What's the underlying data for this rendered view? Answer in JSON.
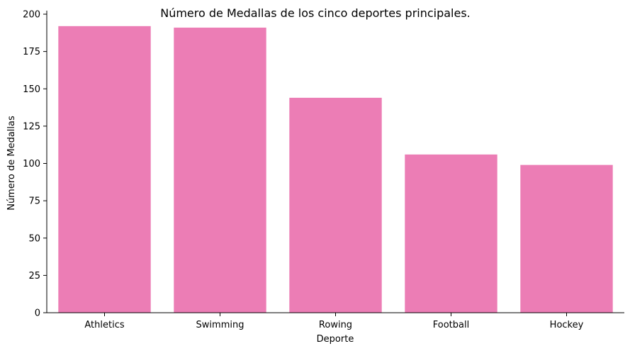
{
  "chart_data": {
    "type": "bar",
    "title": "Número de Medallas de los cinco deportes principales.",
    "xlabel": "Deporte",
    "ylabel": "Número de Medallas",
    "categories": [
      "Athletics",
      "Swimming",
      "Rowing",
      "Football",
      "Hockey"
    ],
    "values": [
      192,
      191,
      144,
      106,
      99
    ],
    "ylim": [
      0,
      200
    ],
    "yticks": [
      "0",
      "25",
      "50",
      "75",
      "100",
      "125",
      "150",
      "175",
      "200"
    ],
    "bar_color": "#ec7db5",
    "grid": false,
    "legend": "none"
  }
}
